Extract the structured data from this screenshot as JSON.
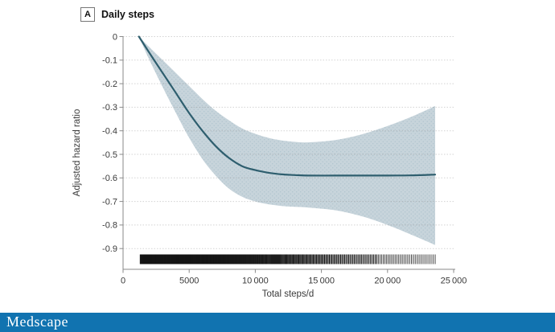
{
  "panel": {
    "label": "A",
    "title": "Daily steps"
  },
  "branding": {
    "logo_text": "Medscape",
    "bar_color": "#1173b0",
    "text_color": "#ffffff"
  },
  "chart_data": {
    "type": "line",
    "title": "Daily steps",
    "xlabel": "Total steps/d",
    "ylabel": "Adjusted hazard ratio",
    "xlim": [
      0,
      25000
    ],
    "ylim": [
      -0.95,
      0
    ],
    "grid": true,
    "legend_position": "none",
    "x_ticks": [
      0,
      5000,
      10000,
      15000,
      20000,
      25000
    ],
    "x_tick_labels": [
      "0",
      "5000",
      "10 000",
      "15 000",
      "20 000",
      "25 000"
    ],
    "y_ticks": [
      0,
      -0.1,
      -0.2,
      -0.3,
      -0.4,
      -0.5,
      -0.6,
      -0.7,
      -0.8,
      -0.9
    ],
    "y_tick_labels": [
      "0",
      "-0.1",
      "-0.2",
      "-0.3",
      "-0.4",
      "-0.5",
      "-0.6",
      "-0.7",
      "-0.8",
      "-0.9"
    ],
    "x": [
      1200,
      2000,
      3000,
      4000,
      5000,
      6000,
      7000,
      8000,
      9000,
      10000,
      11000,
      12000,
      13000,
      14000,
      16000,
      18000,
      20000,
      22000,
      23600
    ],
    "series": [
      {
        "name": "adjusted-hazard-ratio",
        "y": [
          0,
          -0.07,
          -0.155,
          -0.24,
          -0.325,
          -0.4,
          -0.465,
          -0.515,
          -0.55,
          -0.567,
          -0.578,
          -0.585,
          -0.588,
          -0.59,
          -0.59,
          -0.59,
          -0.59,
          -0.589,
          -0.586
        ]
      },
      {
        "name": "ci-upper",
        "y": [
          0,
          -0.045,
          -0.1,
          -0.155,
          -0.21,
          -0.265,
          -0.315,
          -0.355,
          -0.39,
          -0.413,
          -0.43,
          -0.441,
          -0.447,
          -0.449,
          -0.44,
          -0.416,
          -0.38,
          -0.336,
          -0.295
        ]
      },
      {
        "name": "ci-lower",
        "y": [
          0,
          -0.1,
          -0.215,
          -0.325,
          -0.43,
          -0.52,
          -0.59,
          -0.645,
          -0.68,
          -0.7,
          -0.712,
          -0.719,
          -0.723,
          -0.726,
          -0.737,
          -0.762,
          -0.8,
          -0.846,
          -0.885
        ]
      }
    ],
    "rug": {
      "min": 1300,
      "max": 23600,
      "count": 400,
      "linear_weight": 0.55,
      "power": 5
    },
    "colors": {
      "line": "#2e5e6e",
      "band": "#c7d4db",
      "band_dot": "#aec3cd",
      "grid": "#8c8c8c",
      "axis": "#8a8a8a",
      "tick_text": "#3a3a3a",
      "rug": "#141414"
    }
  }
}
